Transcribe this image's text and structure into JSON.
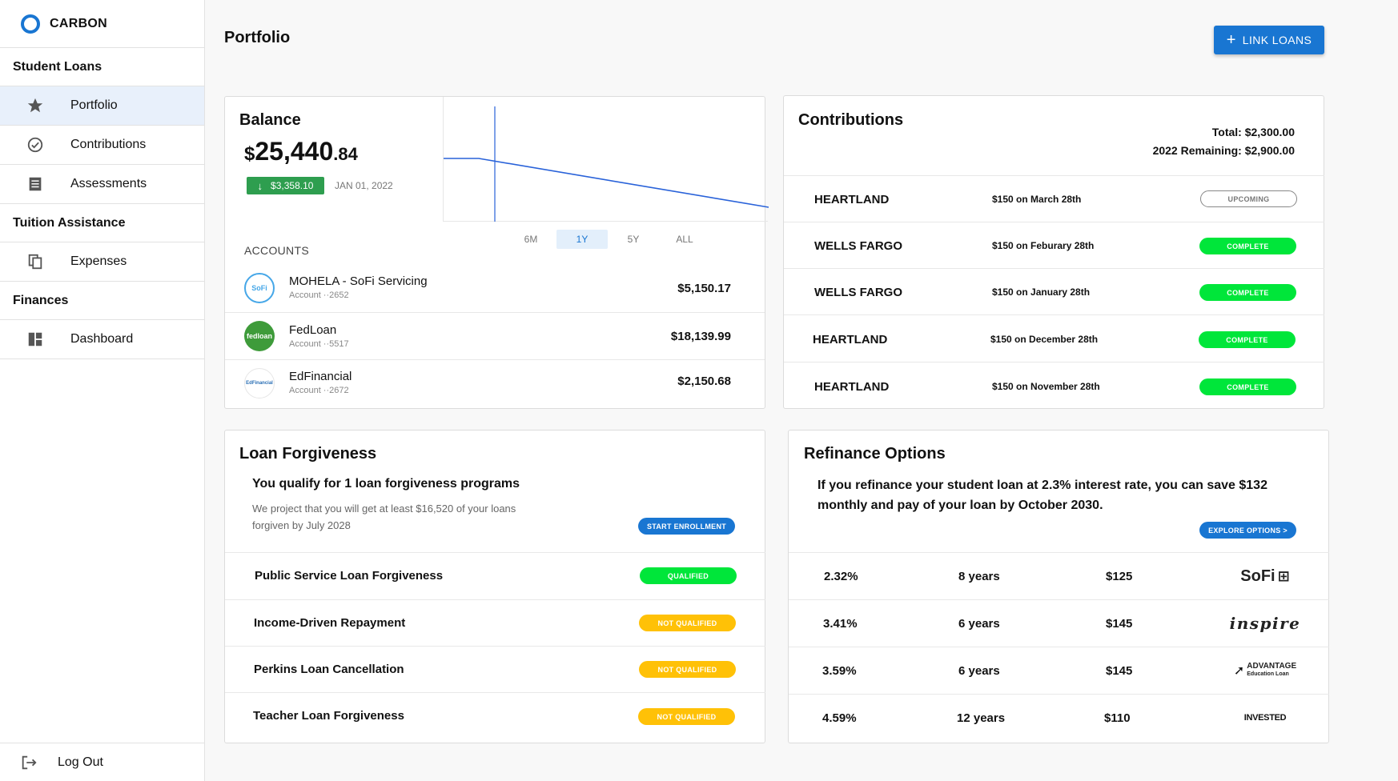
{
  "brand": {
    "name": "CARBON"
  },
  "sidebar": {
    "sections": [
      {
        "title": "Student Loans"
      },
      {
        "title": "Tuition Assistance"
      },
      {
        "title": "Finances"
      }
    ],
    "items": [
      {
        "label": "Portfolio",
        "icon": "star-icon"
      },
      {
        "label": "Contributions",
        "icon": "check-circle-icon"
      },
      {
        "label": "Assessments",
        "icon": "list-icon"
      },
      {
        "label": "Expenses",
        "icon": "copy-icon"
      },
      {
        "label": "Dashboard",
        "icon": "dashboard-icon"
      }
    ],
    "logout": "Log Out"
  },
  "header": {
    "title": "Portfolio",
    "link_button": "LINK LOANS"
  },
  "balance": {
    "title": "Balance",
    "currency": "$",
    "amount_int": "25,440",
    "amount_dec": ".84",
    "change": "$3,358.10",
    "date": "JAN 01, 2022",
    "ranges": [
      "6M",
      "1Y",
      "5Y",
      "ALL"
    ],
    "selected_range": "1Y",
    "accounts_label": "ACCOUNTS",
    "accounts": [
      {
        "name": "MOHELA - SoFi Servicing",
        "sub": "Account ··2652",
        "amount": "$5,150.17",
        "logo": "SoFi"
      },
      {
        "name": "FedLoan",
        "sub": "Account ··5517",
        "amount": "$18,139.99",
        "logo": "fedloan"
      },
      {
        "name": "EdFinancial",
        "sub": "Account ··2672",
        "amount": "$2,150.68",
        "logo": "EdFinancial"
      }
    ]
  },
  "contributions": {
    "title": "Contributions",
    "total": "Total: $2,300.00",
    "remaining": "2022 Remaining: $2,900.00",
    "rows": [
      {
        "name": "HEARTLAND",
        "date": "$150 on March 28th",
        "status": "UPCOMING"
      },
      {
        "name": "WELLS FARGO",
        "date": "$150 on Feburary 28th",
        "status": "COMPLETE"
      },
      {
        "name": "WELLS FARGO",
        "date": "$150 on January 28th",
        "status": "COMPLETE"
      },
      {
        "name": "HEARTLAND",
        "date": "$150 on December 28th",
        "status": "COMPLETE"
      },
      {
        "name": "HEARTLAND",
        "date": "$150 on November 28th",
        "status": "COMPLETE"
      }
    ]
  },
  "forgiveness": {
    "title": "Loan Forgiveness",
    "headline": "You qualify for 1 loan forgiveness programs",
    "description": "We project that you will get at least $16,520 of your loans forgiven by July 2028",
    "button": "START ENROLLMENT",
    "programs": [
      {
        "name": "Public Service Loan Forgiveness",
        "status": "QUALIFIED"
      },
      {
        "name": "Income-Driven Repayment",
        "status": "NOT QUALIFIED"
      },
      {
        "name": "Perkins Loan Cancellation",
        "status": "NOT QUALIFIED"
      },
      {
        "name": "Teacher Loan Forgiveness",
        "status": "NOT QUALIFIED"
      }
    ]
  },
  "refinance": {
    "title": "Refinance Options",
    "description": "If you refinance your student loan at 2.3% interest rate, you can save $132 monthly and pay of your loan by October 2030.",
    "button": "EXPLORE OPTIONS >",
    "options": [
      {
        "rate": "2.32%",
        "term": "8 years",
        "payment": "$125",
        "lender": "SoFi"
      },
      {
        "rate": "3.41%",
        "term": "6 years",
        "payment": "$145",
        "lender": "inspire"
      },
      {
        "rate": "3.59%",
        "term": "6 years",
        "payment": "$145",
        "lender": "ADVANTAGE",
        "lender_sub": "Education Loan"
      },
      {
        "rate": "4.59%",
        "term": "12 years",
        "payment": "$110",
        "lender": "INVESTED"
      }
    ]
  },
  "colors": {
    "primary": "#1976d2",
    "success": "#00e63a",
    "warning": "#ffc107",
    "down": "#2e9e4f"
  }
}
